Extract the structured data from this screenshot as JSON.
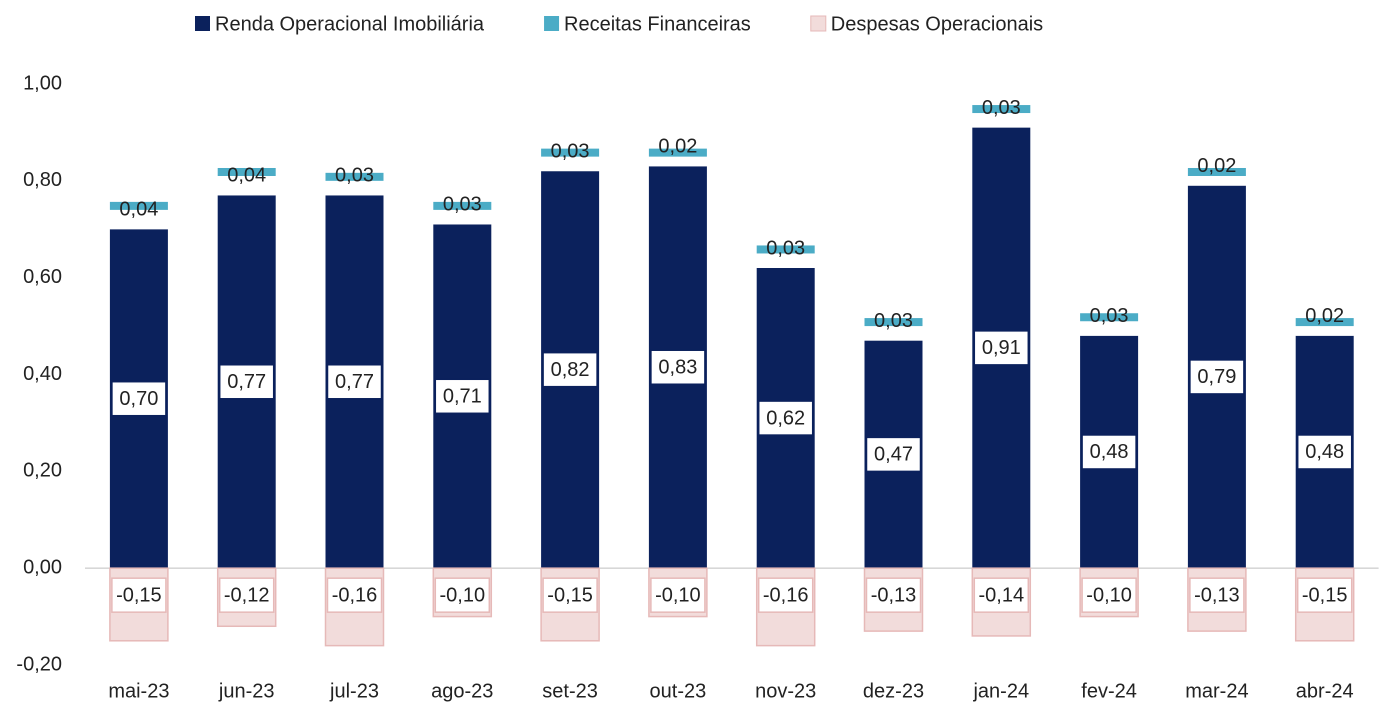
{
  "chart_data": {
    "type": "bar",
    "categories": [
      "mai-23",
      "jun-23",
      "jul-23",
      "ago-23",
      "set-23",
      "out-23",
      "nov-23",
      "dez-23",
      "jan-24",
      "fev-24",
      "mar-24",
      "abr-24"
    ],
    "series": [
      {
        "name": "Renda Operacional Imobiliária",
        "color": "#0b215c",
        "values": [
          0.7,
          0.77,
          0.77,
          0.71,
          0.82,
          0.83,
          0.62,
          0.47,
          0.91,
          0.48,
          0.79,
          0.48
        ],
        "value_labels": [
          "0,70",
          "0,77",
          "0,77",
          "0,71",
          "0,82",
          "0,83",
          "0,62",
          "0,47",
          "0,91",
          "0,48",
          "0,79",
          "0,48"
        ]
      },
      {
        "name": "Receitas Financeiras",
        "color": "#4bacc6",
        "values": [
          0.04,
          0.04,
          0.03,
          0.03,
          0.03,
          0.02,
          0.03,
          0.03,
          0.03,
          0.03,
          0.02,
          0.02
        ],
        "value_labels": [
          "0,04",
          "0,04",
          "0,03",
          "0,03",
          "0,03",
          "0,02",
          "0,03",
          "0,03",
          "0,03",
          "0,03",
          "0,02",
          "0,02"
        ]
      },
      {
        "name": "Despesas Operacionais",
        "color": "#f2dcdb",
        "values": [
          -0.15,
          -0.12,
          -0.16,
          -0.1,
          -0.15,
          -0.1,
          -0.16,
          -0.13,
          -0.14,
          -0.1,
          -0.13,
          -0.15
        ],
        "value_labels": [
          "-0,15",
          "-0,12",
          "-0,16",
          "-0,10",
          "-0,15",
          "-0,10",
          "-0,16",
          "-0,13",
          "-0,14",
          "-0,10",
          "-0,13",
          "-0,15"
        ]
      }
    ],
    "ylim": [
      -0.2,
      1.0
    ],
    "yticks": [
      {
        "value": -0.2,
        "label": "-0,20"
      },
      {
        "value": 0,
        "label": "0,00"
      },
      {
        "value": 0.2,
        "label": "0,20"
      },
      {
        "value": 0.4,
        "label": "0,40"
      },
      {
        "value": 0.6,
        "label": "0,60"
      },
      {
        "value": 0.8,
        "label": "0,80"
      },
      {
        "value": 1.0,
        "label": "1,00"
      }
    ],
    "legend": "top",
    "grid": false
  }
}
